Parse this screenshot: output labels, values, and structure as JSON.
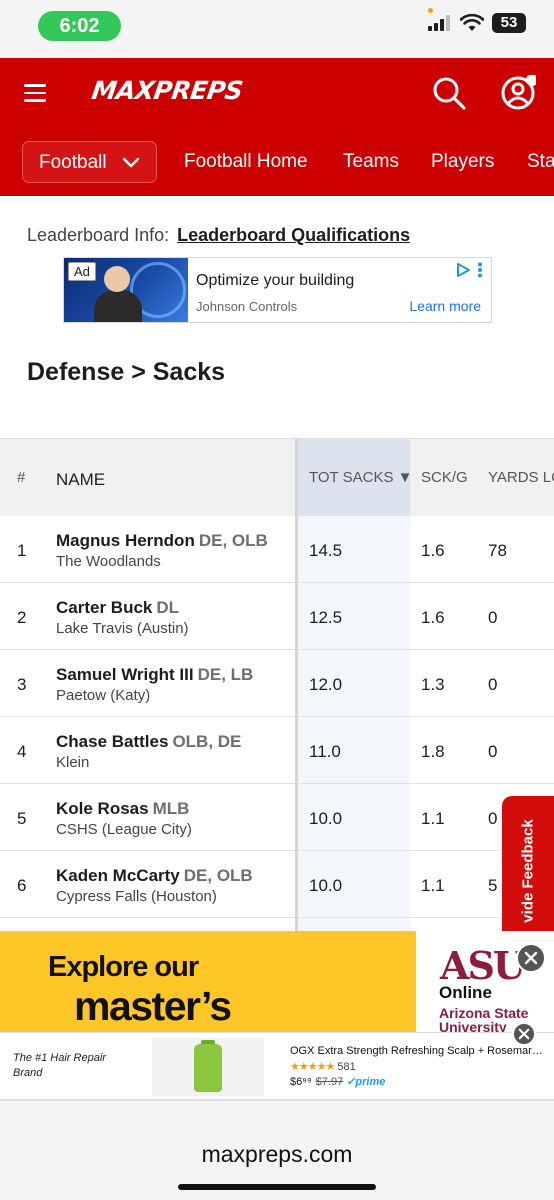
{
  "status_bar": {
    "time": "6:02",
    "battery": "53"
  },
  "header": {
    "logo": "MAXPREPS"
  },
  "nav": {
    "sport": "Football",
    "links": [
      "Football Home",
      "Teams",
      "Players",
      "Sta"
    ]
  },
  "leaderboard": {
    "info_label": "Leaderboard Info:",
    "qual_link": "Leaderboard Qualifications"
  },
  "ad_top": {
    "badge": "Ad",
    "title": "Optimize your building",
    "advertiser": "Johnson Controls",
    "cta": "Learn more"
  },
  "section_title": "Defense > Sacks",
  "table": {
    "headers": {
      "rank": "#",
      "name": "NAME",
      "tot_sacks": "TOT SACKS ▼",
      "sck_g": "SCK/G",
      "yards": "YARDS LO"
    },
    "rows": [
      {
        "rank": "1",
        "name": "Magnus Herndon",
        "pos": "DE, OLB",
        "school": "The Woodlands",
        "tot": "14.5",
        "sckg": "1.6",
        "yards": "78"
      },
      {
        "rank": "2",
        "name": "Carter Buck",
        "pos": "DL",
        "school": "Lake Travis (Austin)",
        "tot": "12.5",
        "sckg": "1.6",
        "yards": "0"
      },
      {
        "rank": "3",
        "name": "Samuel Wright III",
        "pos": "DE, LB",
        "school": "Paetow (Katy)",
        "tot": "12.0",
        "sckg": "1.3",
        "yards": "0"
      },
      {
        "rank": "4",
        "name": "Chase Battles",
        "pos": "OLB, DE",
        "school": "Klein",
        "tot": "11.0",
        "sckg": "1.8",
        "yards": "0"
      },
      {
        "rank": "5",
        "name": "Kole Rosas",
        "pos": "MLB",
        "school": "CSHS (League City)",
        "tot": "10.0",
        "sckg": "1.1",
        "yards": "0"
      },
      {
        "rank": "6",
        "name": "Kaden McCarty",
        "pos": "DE, OLB",
        "school": "Cypress Falls (Houston)",
        "tot": "10.0",
        "sckg": "1.1",
        "yards": "5"
      }
    ]
  },
  "feedback_tab": "vide Feedback",
  "ad_asu": {
    "line1": "Explore our",
    "line2": "master’s",
    "logo": "ASU",
    "online": "Online",
    "name_line1": "Arizona State",
    "name_line2": "University"
  },
  "ad_ogx": {
    "tagline": "The #1 Hair Repair Brand",
    "title": "OGX Extra Strength Refreshing Scalp + Rosemary ...",
    "stars": "★★★★★",
    "reviews": "581",
    "price": "$6⁹⁹",
    "old_price": "$7.97",
    "prime": "✓prime"
  },
  "browser": {
    "url": "maxpreps.com"
  },
  "colors": {
    "brand_red": "#cc0000",
    "asu_maroon": "#8c1d40",
    "asu_gold": "#ffc627",
    "ios_green": "#34c759"
  }
}
